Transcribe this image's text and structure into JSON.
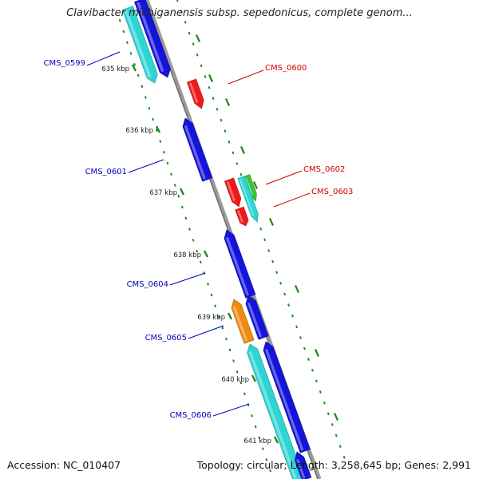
{
  "title": "Clavibacter michiganensis subsp. sepedonicus, complete genom...",
  "footer": {
    "accession": "Accession: NC_010407",
    "summary": "Topology: circular; Length: 3,258,645 bp; Genes: 2,991"
  },
  "colors": {
    "backbone": "#8a8a8a",
    "dots": "#1a8a1a",
    "cyan": "#2fd5d5",
    "blue": "#1414dc",
    "red": "#ee1a1a",
    "green": "#3cc43c",
    "orange": "#f08a10",
    "label_blue": "#0000bb",
    "label_red": "#cc0000"
  },
  "ticks": [
    "635 kbp",
    "636 kbp",
    "637 kbp",
    "638 kbp",
    "639 kbp",
    "640 kbp",
    "641 kbp"
  ],
  "genes": [
    {
      "id": "CMS_0599",
      "label": "CMS_0599",
      "strand": "minus",
      "color": "cyan"
    },
    {
      "id": "CMS_0599b",
      "label": "",
      "strand": "minus",
      "color": "blue"
    },
    {
      "id": "CMS_0600",
      "label": "CMS_0600",
      "strand": "plus",
      "color": "red"
    },
    {
      "id": "CMS_0601",
      "label": "CMS_0601",
      "strand": "minus",
      "color": "blue"
    },
    {
      "id": "CMS_0602",
      "label": "CMS_0602",
      "strand": "plus",
      "color": "green"
    },
    {
      "id": "CMS_0602b",
      "label": "",
      "strand": "plus",
      "color": "cyan"
    },
    {
      "id": "CMS_0603",
      "label": "CMS_0603",
      "strand": "plus",
      "color": "red"
    },
    {
      "id": "CMS_0604",
      "label": "CMS_0604",
      "strand": "minus",
      "color": "blue"
    },
    {
      "id": "CMS_0605",
      "label": "CMS_0605",
      "strand": "minus",
      "color": "orange"
    },
    {
      "id": "CMS_0605b",
      "label": "",
      "strand": "minus",
      "color": "blue"
    },
    {
      "id": "CMS_0606",
      "label": "CMS_0606",
      "strand": "minus",
      "color": "cyan"
    },
    {
      "id": "CMS_0606b",
      "label": "",
      "strand": "minus",
      "color": "blue"
    }
  ]
}
